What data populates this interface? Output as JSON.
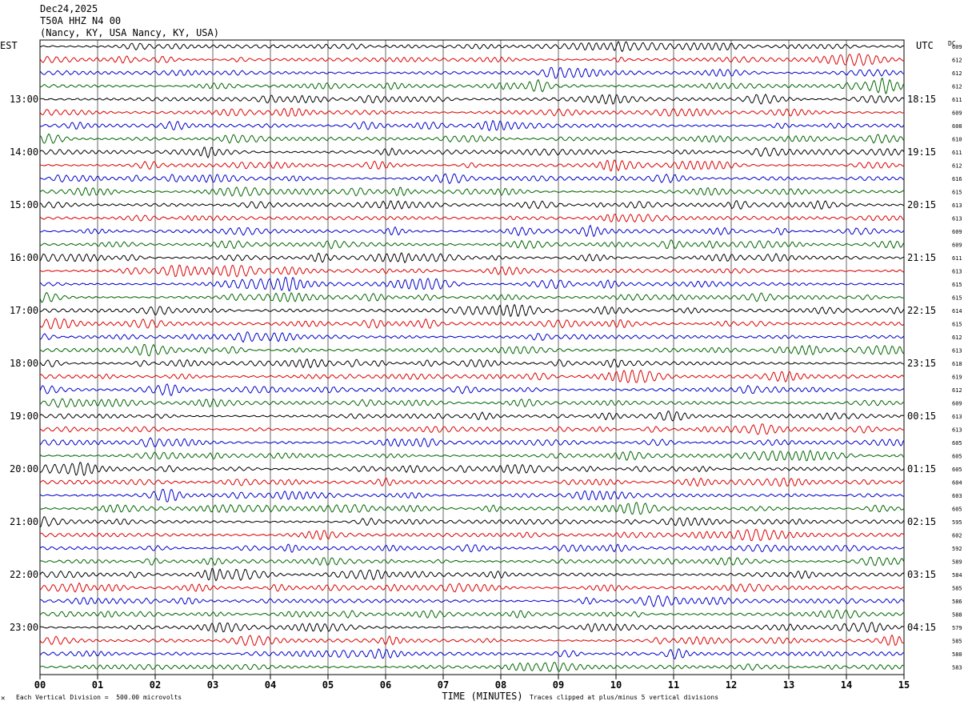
{
  "header": {
    "date": "Dec24,2025",
    "station": "T50A HHZ N4 00",
    "location": "(Nancy, KY, USA Nancy, KY, USA)"
  },
  "axes": {
    "left_label": "EST",
    "right_label": "UTC",
    "dc_label": "DC",
    "xlabel": "TIME (MINUTES)",
    "x_ticks": [
      "00",
      "01",
      "02",
      "03",
      "04",
      "05",
      "06",
      "07",
      "08",
      "09",
      "10",
      "11",
      "12",
      "13",
      "14",
      "15"
    ],
    "left_hours": [
      "13:00",
      "14:00",
      "15:00",
      "16:00",
      "17:00",
      "18:00",
      "19:00",
      "20:00",
      "21:00",
      "22:00",
      "23:00"
    ],
    "right_hours": [
      "18:15",
      "19:15",
      "20:15",
      "21:15",
      "22:15",
      "23:15",
      "00:15",
      "01:15",
      "02:15",
      "03:15",
      "04:15"
    ]
  },
  "footer": {
    "scale_note": "Each Vertical Division =  500.00 microvolts",
    "clip_note": "Traces clipped at plus/minus 5 vertical divisions"
  },
  "chart_data": {
    "type": "line",
    "title": "",
    "xlabel": "TIME (MINUTES)",
    "xlim": [
      0,
      15
    ],
    "trace_colors": [
      "#000000",
      "#dd0000",
      "#0000cc",
      "#006600"
    ],
    "dc_offsets": [
      609,
      612,
      612,
      612,
      611,
      609,
      608,
      610,
      611,
      612,
      616,
      615,
      613,
      613,
      609,
      609,
      611,
      613,
      615,
      615,
      614,
      615,
      612,
      613,
      618,
      619,
      612,
      609,
      613,
      613,
      605,
      605,
      605,
      604,
      603,
      605,
      595,
      602,
      592,
      589,
      584,
      585,
      586,
      588,
      579,
      585,
      580,
      583
    ]
  }
}
